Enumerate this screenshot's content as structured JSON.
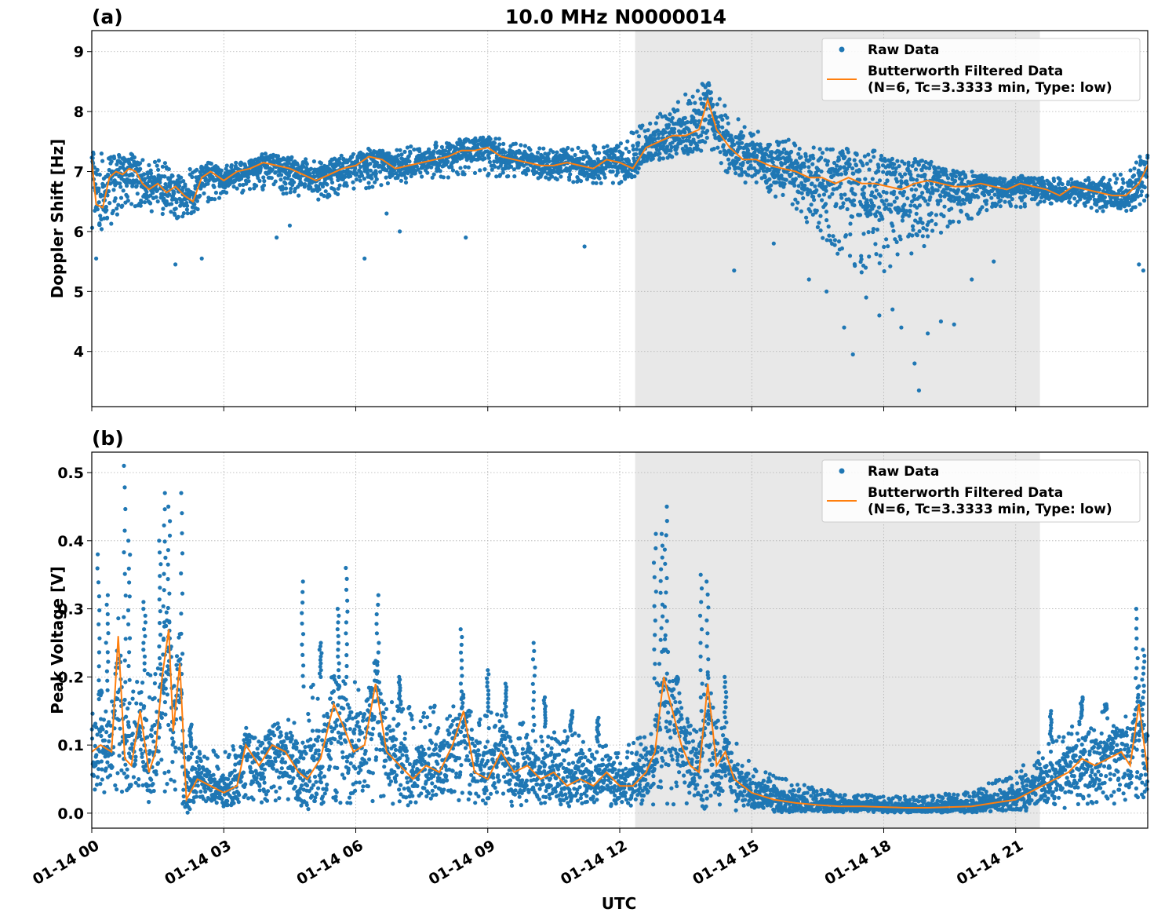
{
  "figure": {
    "title": "10.0 MHz N0000014",
    "xlabel": "UTC",
    "x_tick_labels": [
      "01-14 00",
      "01-14 03",
      "01-14 06",
      "01-14 09",
      "01-14 12",
      "01-14 15",
      "01-14 18",
      "01-14 21"
    ],
    "colors": {
      "raw": "#1f77b4",
      "filtered": "#ff7f0e",
      "shade": "#e8e8e8",
      "grid": "#b0b0b0"
    }
  },
  "chart_data": [
    {
      "type": "scatter",
      "panel_label": "(a)",
      "title": "10.0 MHz N0000014",
      "xlabel": "",
      "ylabel": "Doppler Shift [Hz]",
      "x_unit": "hours UTC since 01-14 00",
      "xlim": [
        0,
        24
      ],
      "ylim": [
        3.08,
        9.35
      ],
      "yticks": [
        4,
        5,
        6,
        7,
        8,
        9
      ],
      "shaded_span_hours": [
        12.35,
        21.55
      ],
      "grid": true,
      "legend_position": "top-right",
      "series": [
        {
          "name": "Raw Data",
          "kind": "scatter",
          "description_points": "dense ~1 s samples, approximated envelope"
        },
        {
          "name": "Butterworth Filtered Data",
          "name_line2": "(N=6, Tc=3.3333 min, Type: low)",
          "kind": "line"
        }
      ],
      "filtered_x": [
        0,
        0.1,
        0.25,
        0.4,
        0.55,
        0.7,
        0.85,
        1.0,
        1.15,
        1.3,
        1.5,
        1.7,
        1.9,
        2.1,
        2.3,
        2.5,
        2.7,
        3.0,
        3.3,
        3.6,
        3.9,
        4.2,
        4.5,
        4.8,
        5.1,
        5.4,
        5.7,
        6.0,
        6.3,
        6.6,
        6.9,
        7.2,
        7.5,
        7.8,
        8.1,
        8.4,
        8.7,
        9.0,
        9.3,
        9.6,
        9.9,
        10.2,
        10.5,
        10.8,
        11.1,
        11.4,
        11.7,
        12.0,
        12.3,
        12.6,
        12.9,
        13.2,
        13.5,
        13.8,
        14.0,
        14.2,
        14.5,
        14.8,
        15.1,
        15.4,
        15.7,
        16.0,
        16.3,
        16.6,
        16.9,
        17.2,
        17.5,
        17.8,
        18.1,
        18.4,
        18.7,
        19.0,
        19.3,
        19.6,
        19.9,
        20.2,
        20.5,
        20.8,
        21.1,
        21.4,
        21.7,
        22.0,
        22.3,
        22.6,
        22.9,
        23.2,
        23.5,
        23.8,
        24.0
      ],
      "filtered_y": [
        7.2,
        6.45,
        6.4,
        6.9,
        7.0,
        6.95,
        7.05,
        7.0,
        6.8,
        6.7,
        6.8,
        6.65,
        6.75,
        6.6,
        6.5,
        6.9,
        7.0,
        6.85,
        7.0,
        7.05,
        7.15,
        7.1,
        7.05,
        6.95,
        6.85,
        6.95,
        7.05,
        7.1,
        7.25,
        7.2,
        7.05,
        7.1,
        7.15,
        7.2,
        7.25,
        7.35,
        7.35,
        7.4,
        7.25,
        7.2,
        7.15,
        7.1,
        7.1,
        7.15,
        7.1,
        7.05,
        7.2,
        7.15,
        7.05,
        7.4,
        7.5,
        7.6,
        7.6,
        7.7,
        8.2,
        7.7,
        7.4,
        7.2,
        7.2,
        7.1,
        7.05,
        7.0,
        6.9,
        6.9,
        6.8,
        6.9,
        6.8,
        6.8,
        6.75,
        6.7,
        6.8,
        6.85,
        6.8,
        6.75,
        6.75,
        6.8,
        6.75,
        6.7,
        6.8,
        6.75,
        6.7,
        6.6,
        6.75,
        6.7,
        6.65,
        6.6,
        6.6,
        6.8,
        7.1
      ],
      "raw_envelope_x": [
        0,
        1,
        2,
        3,
        4,
        5,
        6,
        7,
        8,
        9,
        10,
        11,
        12,
        12.5,
        13,
        13.5,
        14,
        14.5,
        15,
        15.5,
        16,
        16.5,
        17,
        17.5,
        18,
        18.5,
        19,
        19.5,
        20,
        20.5,
        21,
        21.5,
        22,
        22.5,
        23,
        23.5,
        24
      ],
      "raw_envelope_lo": [
        5.9,
        6.4,
        6.2,
        6.6,
        6.7,
        6.5,
        6.7,
        6.8,
        6.9,
        6.9,
        6.9,
        6.8,
        6.8,
        7.1,
        7.2,
        7.2,
        7.4,
        6.9,
        6.7,
        6.6,
        6.3,
        6.0,
        5.5,
        5.3,
        5.2,
        5.5,
        5.8,
        6.0,
        6.2,
        6.4,
        6.4,
        6.4,
        6.5,
        6.4,
        6.3,
        6.3,
        6.5
      ],
      "raw_envelope_hi": [
        7.3,
        7.3,
        7.1,
        7.1,
        7.3,
        7.2,
        7.3,
        7.4,
        7.5,
        7.6,
        7.4,
        7.4,
        7.5,
        7.8,
        8.0,
        8.3,
        8.6,
        8.0,
        7.7,
        7.6,
        7.5,
        7.4,
        7.4,
        7.3,
        7.2,
        7.2,
        7.1,
        7.0,
        7.0,
        6.9,
        6.9,
        6.9,
        6.9,
        6.9,
        6.9,
        7.0,
        7.4
      ],
      "raw_outliers": [
        [
          0.1,
          5.55
        ],
        [
          1.9,
          5.45
        ],
        [
          2.5,
          5.55
        ],
        [
          4.2,
          5.9
        ],
        [
          4.5,
          6.1
        ],
        [
          6.2,
          5.55
        ],
        [
          6.7,
          6.3
        ],
        [
          7.0,
          6.0
        ],
        [
          8.5,
          5.9
        ],
        [
          11.2,
          5.75
        ],
        [
          14.6,
          5.35
        ],
        [
          15.5,
          5.8
        ],
        [
          16.3,
          5.2
        ],
        [
          16.7,
          5.0
        ],
        [
          17.1,
          4.4
        ],
        [
          17.3,
          3.95
        ],
        [
          17.6,
          4.9
        ],
        [
          17.9,
          4.6
        ],
        [
          18.2,
          4.7
        ],
        [
          18.4,
          4.4
        ],
        [
          18.7,
          3.8
        ],
        [
          18.8,
          3.35
        ],
        [
          19.0,
          4.3
        ],
        [
          19.3,
          4.5
        ],
        [
          19.6,
          4.45
        ],
        [
          20.0,
          5.2
        ],
        [
          20.5,
          5.5
        ],
        [
          23.8,
          5.45
        ],
        [
          23.9,
          5.35
        ]
      ]
    },
    {
      "type": "scatter",
      "panel_label": "(b)",
      "title": "",
      "xlabel": "UTC",
      "ylabel": "Peak Voltage [V]",
      "x_unit": "hours UTC since 01-14 00",
      "xlim": [
        0,
        24
      ],
      "ylim": [
        -0.022,
        0.53
      ],
      "yticks": [
        0.0,
        0.1,
        0.2,
        0.3,
        0.4,
        0.5
      ],
      "shaded_span_hours": [
        12.35,
        21.55
      ],
      "grid": true,
      "legend_position": "top-right",
      "series": [
        {
          "name": "Raw Data",
          "kind": "scatter"
        },
        {
          "name": "Butterworth Filtered Data",
          "name_line2": "(N=6, Tc=3.3333 min, Type: low)",
          "kind": "line"
        }
      ],
      "filtered_x": [
        0,
        0.2,
        0.45,
        0.6,
        0.75,
        0.9,
        1.1,
        1.3,
        1.45,
        1.6,
        1.75,
        1.85,
        2.0,
        2.15,
        2.4,
        2.7,
        3.0,
        3.3,
        3.5,
        3.8,
        4.1,
        4.4,
        4.7,
        4.9,
        5.2,
        5.5,
        5.7,
        5.95,
        6.2,
        6.45,
        6.7,
        7.0,
        7.3,
        7.6,
        7.9,
        8.2,
        8.45,
        8.7,
        9.0,
        9.3,
        9.6,
        9.9,
        10.2,
        10.5,
        10.8,
        11.1,
        11.4,
        11.7,
        12.0,
        12.3,
        12.6,
        12.8,
        13.0,
        13.2,
        13.4,
        13.6,
        13.8,
        14.0,
        14.2,
        14.4,
        14.6,
        15.0,
        15.5,
        16.0,
        16.5,
        17.0,
        17.5,
        18.0,
        18.5,
        19.0,
        19.5,
        20.0,
        20.5,
        21.0,
        21.3,
        21.6,
        21.9,
        22.2,
        22.5,
        22.8,
        23.1,
        23.4,
        23.6,
        23.8,
        24.0
      ],
      "filtered_y": [
        0.09,
        0.1,
        0.09,
        0.26,
        0.08,
        0.07,
        0.15,
        0.06,
        0.09,
        0.2,
        0.27,
        0.12,
        0.22,
        0.02,
        0.05,
        0.04,
        0.03,
        0.04,
        0.1,
        0.07,
        0.1,
        0.09,
        0.06,
        0.05,
        0.08,
        0.16,
        0.13,
        0.09,
        0.1,
        0.19,
        0.09,
        0.07,
        0.05,
        0.07,
        0.06,
        0.1,
        0.15,
        0.06,
        0.05,
        0.09,
        0.06,
        0.07,
        0.05,
        0.06,
        0.04,
        0.05,
        0.04,
        0.06,
        0.04,
        0.04,
        0.06,
        0.09,
        0.2,
        0.15,
        0.1,
        0.07,
        0.06,
        0.19,
        0.07,
        0.09,
        0.05,
        0.03,
        0.02,
        0.015,
        0.012,
        0.01,
        0.01,
        0.009,
        0.008,
        0.008,
        0.009,
        0.01,
        0.015,
        0.02,
        0.03,
        0.04,
        0.05,
        0.06,
        0.08,
        0.07,
        0.08,
        0.09,
        0.07,
        0.16,
        0.06
      ],
      "raw_envelope_x": [
        0,
        1,
        2,
        2.1,
        3,
        4,
        5,
        6,
        7,
        8,
        9,
        10,
        11,
        12,
        12.5,
        13,
        13.5,
        14,
        14.5,
        15,
        16,
        17,
        18,
        19,
        20,
        21,
        21.5,
        22,
        22.5,
        23,
        23.5,
        24
      ],
      "raw_envelope_lo": [
        0.03,
        0.03,
        0.02,
        0.005,
        0.01,
        0.015,
        0.01,
        0.01,
        0.01,
        0.01,
        0.01,
        0.01,
        0.01,
        0.01,
        0.01,
        0.01,
        0.008,
        0.006,
        0.004,
        0.002,
        0.001,
        0.001,
        0.001,
        0.001,
        0.001,
        0.002,
        0.004,
        0.006,
        0.01,
        0.012,
        0.015,
        0.02
      ],
      "raw_envelope_hi": [
        0.17,
        0.2,
        0.25,
        0.1,
        0.09,
        0.13,
        0.2,
        0.2,
        0.16,
        0.16,
        0.15,
        0.13,
        0.12,
        0.09,
        0.12,
        0.25,
        0.15,
        0.15,
        0.12,
        0.07,
        0.045,
        0.03,
        0.025,
        0.025,
        0.035,
        0.06,
        0.09,
        0.12,
        0.14,
        0.15,
        0.16,
        0.15
      ],
      "raw_spikes": [
        [
          0.2,
          0.18
        ],
        [
          0.15,
          0.38
        ],
        [
          0.35,
          0.32
        ],
        [
          0.75,
          0.51
        ],
        [
          0.85,
          0.4
        ],
        [
          1.2,
          0.31
        ],
        [
          1.55,
          0.4
        ],
        [
          1.65,
          0.47
        ],
        [
          1.75,
          0.45
        ],
        [
          2.05,
          0.47
        ],
        [
          2.25,
          0.13
        ],
        [
          4.8,
          0.34
        ],
        [
          5.2,
          0.25
        ],
        [
          5.6,
          0.3
        ],
        [
          5.8,
          0.36
        ],
        [
          6.5,
          0.32
        ],
        [
          7.0,
          0.2
        ],
        [
          8.4,
          0.27
        ],
        [
          9.0,
          0.21
        ],
        [
          9.4,
          0.19
        ],
        [
          10.05,
          0.25
        ],
        [
          10.3,
          0.17
        ],
        [
          10.9,
          0.15
        ],
        [
          11.5,
          0.14
        ],
        [
          12.8,
          0.41
        ],
        [
          12.95,
          0.41
        ],
        [
          13.05,
          0.45
        ],
        [
          13.3,
          0.2
        ],
        [
          13.85,
          0.35
        ],
        [
          14.0,
          0.34
        ],
        [
          14.4,
          0.2
        ],
        [
          21.8,
          0.15
        ],
        [
          22.5,
          0.17
        ],
        [
          23.05,
          0.16
        ],
        [
          23.75,
          0.3
        ],
        [
          23.9,
          0.24
        ]
      ]
    }
  ]
}
